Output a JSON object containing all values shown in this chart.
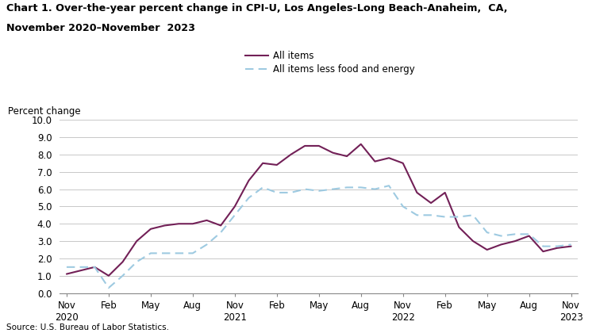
{
  "title_line1": "Chart 1. Over-the-year percent change in CPI-U, Los Angeles-Long Beach-Anaheim,  CA,",
  "title_line2": "November 2020–November  2023",
  "ylabel": "Percent change",
  "source": "Source: U.S. Bureau of Labor Statistics.",
  "all_items_color": "#722057",
  "all_items_less_color": "#9ecae1",
  "ylim": [
    0.0,
    10.0
  ],
  "yticks": [
    0.0,
    1.0,
    2.0,
    3.0,
    4.0,
    5.0,
    6.0,
    7.0,
    8.0,
    9.0,
    10.0
  ],
  "background_color": "#ffffff",
  "grid_color": "#c8c8c8",
  "all_items_monthly": [
    1.1,
    1.3,
    1.5,
    1.0,
    1.8,
    3.0,
    3.7,
    3.9,
    4.0,
    4.0,
    4.2,
    3.9,
    5.0,
    6.5,
    7.5,
    7.4,
    8.0,
    8.5,
    8.5,
    8.1,
    7.9,
    8.6,
    7.6,
    7.8,
    7.5,
    5.8,
    5.2,
    5.8,
    3.8,
    3.0,
    2.5,
    2.8,
    3.0,
    3.3,
    2.4,
    2.6,
    2.7
  ],
  "all_items_less_monthly": [
    1.5,
    1.5,
    1.5,
    0.3,
    1.0,
    1.8,
    2.3,
    2.3,
    2.3,
    2.3,
    2.8,
    3.5,
    4.5,
    5.5,
    6.1,
    5.8,
    5.8,
    6.0,
    5.9,
    6.0,
    6.1,
    6.1,
    6.0,
    6.2,
    5.0,
    4.5,
    4.5,
    4.4,
    4.4,
    4.5,
    3.5,
    3.3,
    3.4,
    3.4,
    2.7,
    2.7,
    2.8
  ],
  "tick_positions": [
    0,
    3,
    6,
    9,
    12,
    15,
    18,
    21,
    24,
    27,
    30,
    33,
    36
  ],
  "tick_labels": [
    "Nov\n2020",
    "Feb",
    "May",
    "Aug",
    "Nov\n2021",
    "Feb",
    "May",
    "Aug",
    "Nov\n2022",
    "Feb",
    "May",
    "Aug",
    "Nov\n2023"
  ]
}
